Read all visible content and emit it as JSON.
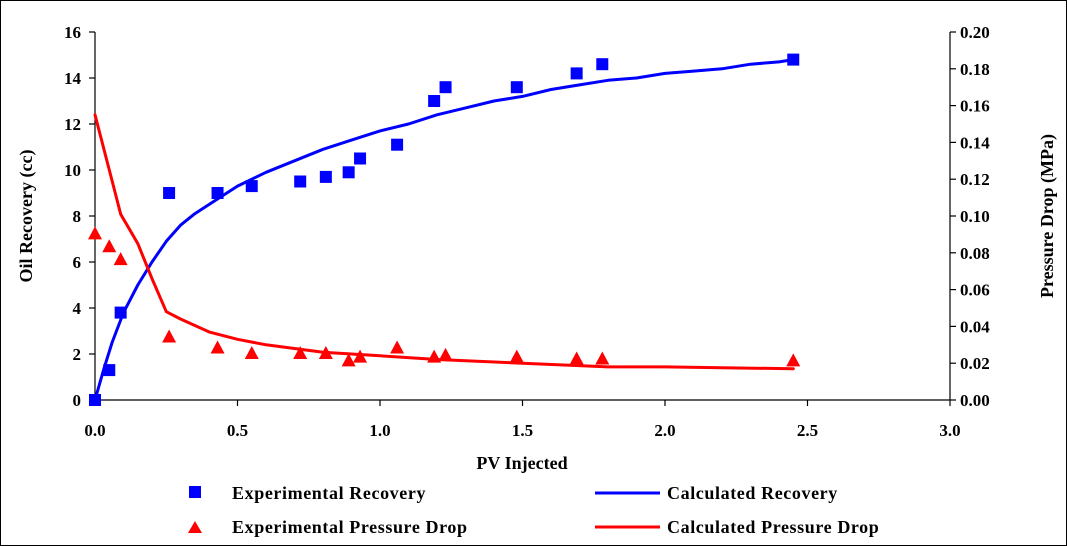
{
  "chart_data": {
    "type": "scatter",
    "xlabel": "PV Injected",
    "ylabel_left": "Oil Recovery (cc)",
    "ylabel_right": "Pressure Drop (MPa)",
    "xlim": [
      0,
      3.0
    ],
    "ylim_left": [
      0,
      16
    ],
    "ylim_right": [
      0,
      0.2
    ],
    "x_ticks": [
      "0.0",
      "0.5",
      "1.0",
      "1.5",
      "2.0",
      "2.5",
      "3.0"
    ],
    "y_left_ticks": [
      "0",
      "2",
      "4",
      "6",
      "8",
      "10",
      "12",
      "14",
      "16"
    ],
    "y_right_ticks": [
      "0.00",
      "0.02",
      "0.04",
      "0.06",
      "0.08",
      "0.10",
      "0.12",
      "0.14",
      "0.16",
      "0.18",
      "0.20"
    ],
    "grid": false,
    "legend_position": "bottom",
    "colors": {
      "recovery": "#0000ff",
      "pressure": "#ff0000"
    },
    "series": [
      {
        "name": "Experimental Recovery",
        "kind": "scatter",
        "marker": "square",
        "axis": "left",
        "x": [
          0.0,
          0.05,
          0.09,
          0.26,
          0.43,
          0.55,
          0.72,
          0.81,
          0.89,
          0.93,
          1.06,
          1.19,
          1.23,
          1.48,
          1.69,
          1.78,
          2.45
        ],
        "y": [
          0.0,
          1.3,
          3.8,
          9.0,
          9.0,
          9.3,
          9.5,
          9.7,
          9.9,
          10.5,
          11.1,
          13.0,
          13.6,
          13.6,
          14.2,
          14.6,
          14.8
        ]
      },
      {
        "name": "Calculated Recovery",
        "kind": "line",
        "axis": "left",
        "x": [
          0.0,
          0.03,
          0.06,
          0.1,
          0.15,
          0.2,
          0.25,
          0.3,
          0.35,
          0.4,
          0.5,
          0.6,
          0.7,
          0.8,
          0.9,
          1.0,
          1.1,
          1.2,
          1.3,
          1.4,
          1.5,
          1.6,
          1.7,
          1.8,
          1.9,
          2.0,
          2.1,
          2.2,
          2.3,
          2.4,
          2.45
        ],
        "y": [
          0.0,
          1.3,
          2.5,
          3.8,
          5.0,
          6.0,
          6.9,
          7.6,
          8.1,
          8.5,
          9.3,
          9.9,
          10.4,
          10.9,
          11.3,
          11.7,
          12.0,
          12.4,
          12.7,
          13.0,
          13.2,
          13.5,
          13.7,
          13.9,
          14.0,
          14.2,
          14.3,
          14.4,
          14.6,
          14.7,
          14.8
        ]
      },
      {
        "name": "Experimental Pressure Drop",
        "kind": "scatter",
        "marker": "triangle",
        "axis": "right",
        "x": [
          0.0,
          0.05,
          0.09,
          0.26,
          0.43,
          0.55,
          0.72,
          0.81,
          0.89,
          0.93,
          1.06,
          1.19,
          1.23,
          1.48,
          1.69,
          1.78,
          2.45
        ],
        "y": [
          0.09,
          0.083,
          0.076,
          0.034,
          0.028,
          0.025,
          0.025,
          0.025,
          0.021,
          0.023,
          0.028,
          0.023,
          0.024,
          0.023,
          0.022,
          0.022,
          0.021
        ]
      },
      {
        "name": "Calculated Pressure Drop",
        "kind": "line",
        "axis": "right",
        "x": [
          0.0,
          0.05,
          0.09,
          0.15,
          0.2,
          0.25,
          0.3,
          0.4,
          0.5,
          0.6,
          0.8,
          1.0,
          1.2,
          1.5,
          1.8,
          2.0,
          2.2,
          2.45
        ],
        "y": [
          0.155,
          0.125,
          0.101,
          0.085,
          0.066,
          0.048,
          0.044,
          0.037,
          0.033,
          0.03,
          0.026,
          0.024,
          0.022,
          0.02,
          0.018,
          0.018,
          0.0175,
          0.017
        ]
      }
    ]
  }
}
